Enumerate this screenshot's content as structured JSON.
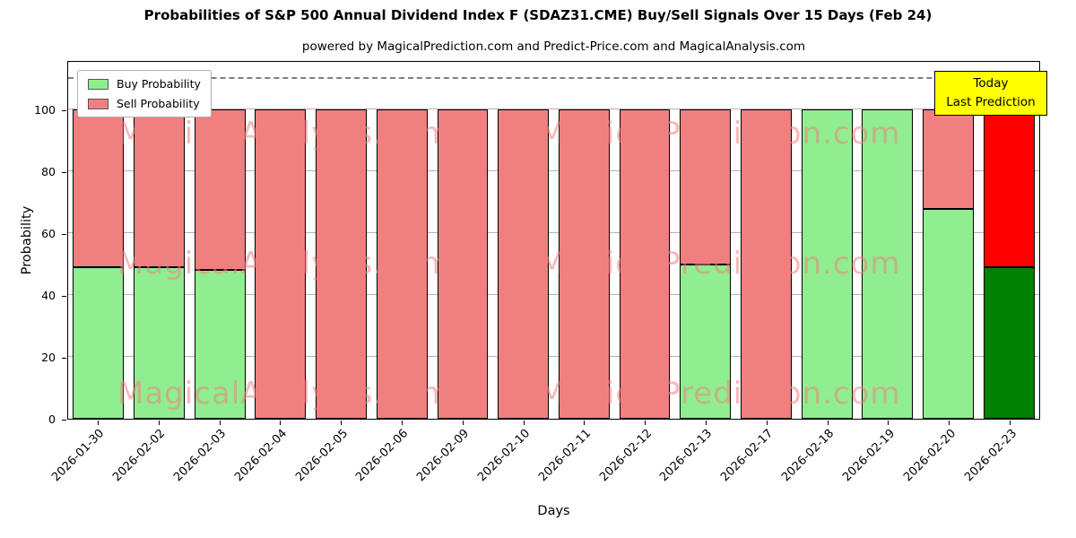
{
  "legend": [
    {
      "label": "Buy Probability",
      "color": "#90EE90"
    },
    {
      "label": "Sell Probability",
      "color": "#F08080"
    }
  ],
  "annotation": {
    "line1": "Today",
    "line2": "Last Prediction",
    "bg": "#FFFF00"
  },
  "watermarks": [
    "MagicalAnalysis.com",
    "MagicalPrediction.com"
  ],
  "watermark_color": "rgba(240,128,128,0.55)",
  "chart_data": {
    "type": "bar",
    "stacked": true,
    "title": "Probabilities of S&P 500 Annual Dividend Index F (SDAZ31.CME) Buy/Sell Signals Over 15 Days (Feb 24)",
    "subtitle": "powered by MagicalPrediction.com and Predict-Price.com and MagicalAnalysis.com",
    "xlabel": "Days",
    "ylabel": "Probability",
    "categories": [
      "2026-01-30",
      "2026-02-02",
      "2026-02-03",
      "2026-02-04",
      "2026-02-05",
      "2026-02-06",
      "2026-02-09",
      "2026-02-10",
      "2026-02-11",
      "2026-02-12",
      "2026-02-13",
      "2026-02-17",
      "2026-02-18",
      "2026-02-19",
      "2026-02-20",
      "2026-02-23"
    ],
    "series": [
      {
        "name": "Buy Probability",
        "color": "#90EE90",
        "values": [
          49,
          49,
          48,
          0,
          0,
          0,
          0,
          0,
          0,
          0,
          50,
          0,
          100,
          100,
          68,
          49
        ]
      },
      {
        "name": "Sell Probability",
        "color": "#F08080",
        "values": [
          51,
          51,
          52,
          100,
          100,
          100,
          100,
          100,
          100,
          100,
          50,
          100,
          0,
          0,
          32,
          61
        ]
      }
    ],
    "last_bar_colors": {
      "buy": "#008000",
      "sell": "#FF0000"
    },
    "last_bar_total": 110,
    "ylim": [
      0,
      116
    ],
    "yticks": [
      0,
      20,
      40,
      60,
      80,
      100
    ],
    "dashed_line_y": 110,
    "grid": "horizontal",
    "legend_position": "upper-left"
  }
}
